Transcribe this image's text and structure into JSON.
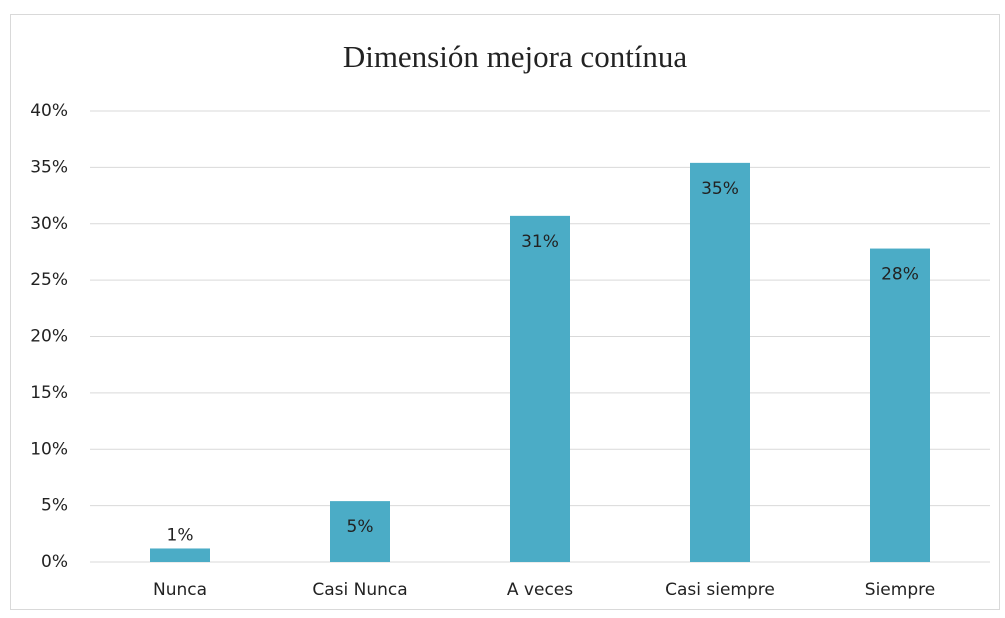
{
  "chart_data": {
    "type": "bar",
    "title": "Dimensión mejora contínua",
    "categories": [
      "Nunca",
      "Casi Nunca",
      "A veces",
      "Casi siempre",
      "Siempre"
    ],
    "values": [
      1.2,
      5.4,
      30.7,
      35.4,
      27.8
    ],
    "value_labels": [
      "1%",
      "5%",
      "31%",
      "35%",
      "28%"
    ],
    "color": "#4bacc6",
    "ylim": [
      0,
      40
    ],
    "yticks": [
      {
        "value": 0,
        "label": "0%"
      },
      {
        "value": 5,
        "label": "5%"
      },
      {
        "value": 10,
        "label": "10%"
      },
      {
        "value": 15,
        "label": "15%"
      },
      {
        "value": 20,
        "label": "20%"
      },
      {
        "value": 25,
        "label": "25%"
      },
      {
        "value": 30,
        "label": "30%"
      },
      {
        "value": 35,
        "label": "35%"
      },
      {
        "value": 40,
        "label": "40%"
      }
    ],
    "grid": true
  }
}
